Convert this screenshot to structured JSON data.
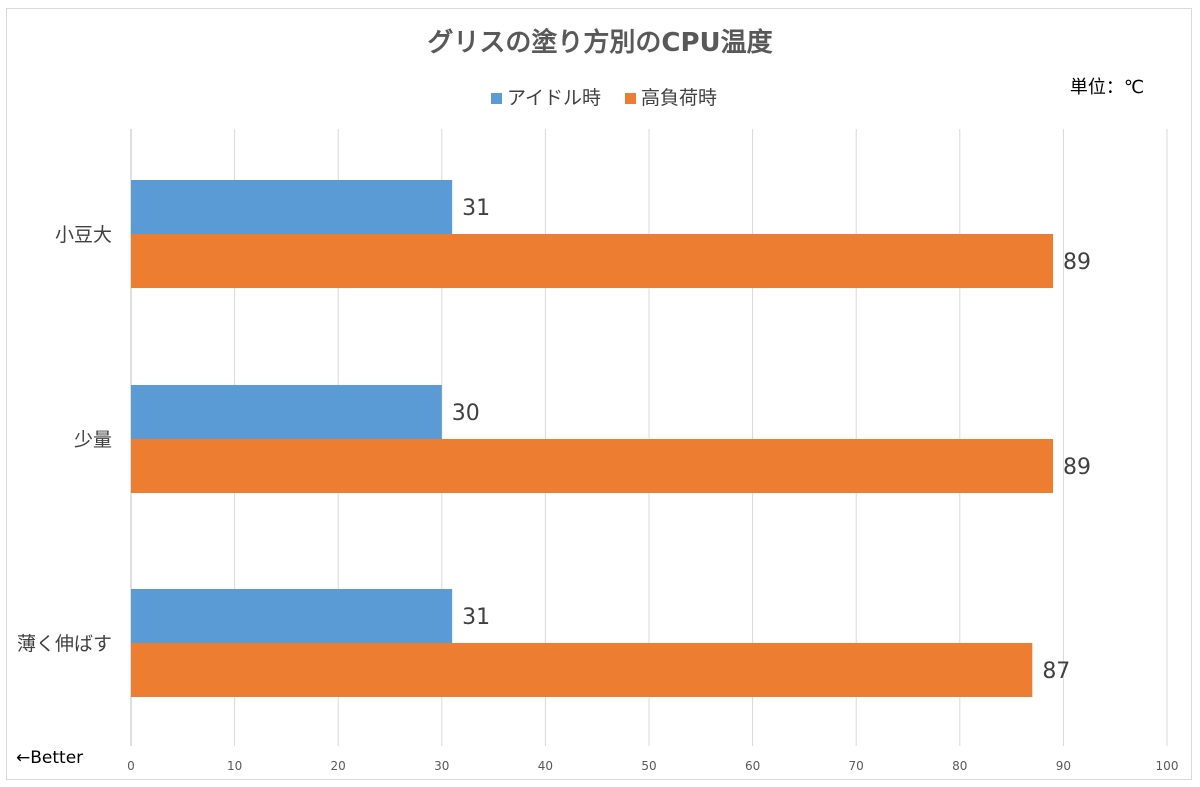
{
  "chart_data": {
    "type": "bar",
    "orientation": "horizontal",
    "title": "グリスの塗り方別のCPU温度",
    "unit_label": "単位：℃",
    "note": "←Better",
    "categories": [
      "小豆大",
      "少量",
      "薄く伸ばす"
    ],
    "series": [
      {
        "name": "アイドル時",
        "color": "#5b9bd5",
        "values": [
          31,
          30,
          31
        ]
      },
      {
        "name": "高負荷時",
        "color": "#ed7d31",
        "values": [
          89,
          89,
          87
        ]
      }
    ],
    "xlim": [
      0,
      100
    ],
    "x_ticks": [
      0,
      10,
      20,
      30,
      40,
      50,
      60,
      70,
      80,
      90,
      100
    ],
    "grid": true,
    "legend_position": "top",
    "data_labels": true
  }
}
